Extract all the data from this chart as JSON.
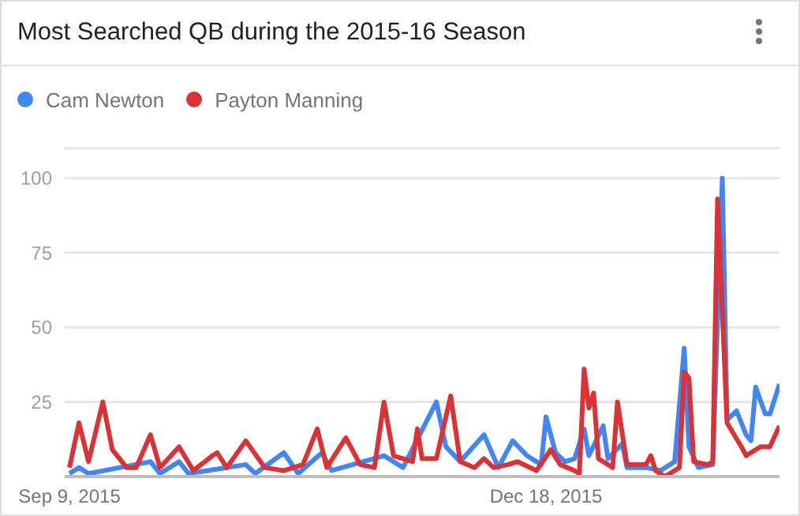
{
  "chart_data": {
    "type": "line",
    "title": "Most Searched QB during the 2015-16 Season",
    "legend": "top left",
    "grid": "y",
    "xlim": [
      "2015-09-08",
      "2016-02-05"
    ],
    "xticks": [
      {
        "value": "2015-09-09",
        "label": "Sep 9, 2015"
      },
      {
        "value": "2015-12-18",
        "label": "Dec 18, 2015"
      }
    ],
    "ylim": [
      0,
      110
    ],
    "yticks": [
      25,
      50,
      75,
      100
    ],
    "series": [
      {
        "name": "Cam Newton",
        "color": "#4285f4",
        "x": [
          "2015-09-09",
          "2015-09-11",
          "2015-09-13",
          "2015-09-26",
          "2015-09-28",
          "2015-10-02",
          "2015-10-04",
          "2015-10-16",
          "2015-10-18",
          "2015-10-24",
          "2015-10-27",
          "2015-11-01",
          "2015-11-03",
          "2015-11-14",
          "2015-11-18",
          "2015-11-25",
          "2015-11-27",
          "2015-11-30",
          "2015-12-05",
          "2015-12-08",
          "2015-12-11",
          "2015-12-14",
          "2015-12-17",
          "2015-12-18",
          "2015-12-20",
          "2015-12-22",
          "2015-12-24",
          "2015-12-26",
          "2015-12-27",
          "2015-12-30",
          "2015-12-31",
          "2016-01-03",
          "2016-01-04",
          "2016-01-08",
          "2016-01-11",
          "2016-01-14",
          "2016-01-16",
          "2016-01-17",
          "2016-01-19",
          "2016-01-22",
          "2016-01-24",
          "2016-01-25",
          "2016-01-27",
          "2016-01-29",
          "2016-01-30",
          "2016-01-31",
          "2016-02-02",
          "2016-02-03",
          "2016-02-05"
        ],
        "values": [
          1,
          3,
          1,
          5,
          1,
          5,
          1,
          4,
          1,
          8,
          1,
          8,
          2,
          7,
          3,
          25,
          10,
          5,
          14,
          3,
          12,
          7,
          4,
          20,
          8,
          5,
          6,
          16,
          7,
          17,
          6,
          11,
          3,
          3,
          2,
          5,
          43,
          10,
          3,
          4,
          100,
          19,
          22,
          14,
          12,
          30,
          21,
          21,
          31
        ]
      },
      {
        "name": "Payton Manning",
        "color": "#db3236",
        "x": [
          "2015-09-09",
          "2015-09-11",
          "2015-09-13",
          "2015-09-16",
          "2015-09-18",
          "2015-09-21",
          "2015-09-23",
          "2015-09-26",
          "2015-09-28",
          "2015-10-02",
          "2015-10-05",
          "2015-10-09",
          "2015-10-10",
          "2015-10-12",
          "2015-10-16",
          "2015-10-20",
          "2015-10-24",
          "2015-10-28",
          "2015-10-31",
          "2015-11-02",
          "2015-11-06",
          "2015-11-09",
          "2015-11-12",
          "2015-11-14",
          "2015-11-16",
          "2015-11-20",
          "2015-11-21",
          "2015-11-22",
          "2015-11-25",
          "2015-11-28",
          "2015-11-30",
          "2015-12-03",
          "2015-12-05",
          "2015-12-07",
          "2015-12-10",
          "2015-12-12",
          "2015-12-16",
          "2015-12-19",
          "2015-12-21",
          "2015-12-24",
          "2015-12-25",
          "2015-12-26",
          "2015-12-27",
          "2015-12-28",
          "2015-12-29",
          "2016-01-01",
          "2016-01-02",
          "2016-01-04",
          "2016-01-08",
          "2016-01-09",
          "2016-01-10",
          "2016-01-12",
          "2016-01-15",
          "2016-01-16",
          "2016-01-17",
          "2016-01-18",
          "2016-01-21",
          "2016-01-22",
          "2016-01-23",
          "2016-01-25",
          "2016-01-28",
          "2016-01-29",
          "2016-02-01",
          "2016-02-03",
          "2016-02-05"
        ],
        "values": [
          3,
          18,
          5,
          25,
          9,
          3,
          3,
          14,
          3,
          10,
          2,
          7,
          8,
          3,
          12,
          3,
          2,
          4,
          16,
          3,
          13,
          4,
          3,
          25,
          7,
          5,
          16,
          6,
          6,
          27,
          5,
          3,
          6,
          3,
          4,
          5,
          2,
          9,
          4,
          2,
          1,
          36,
          23,
          28,
          6,
          3,
          25,
          4,
          4,
          7,
          2,
          0,
          3,
          35,
          33,
          5,
          4,
          5,
          93,
          18,
          10,
          7,
          10,
          10,
          17
        ]
      }
    ]
  }
}
